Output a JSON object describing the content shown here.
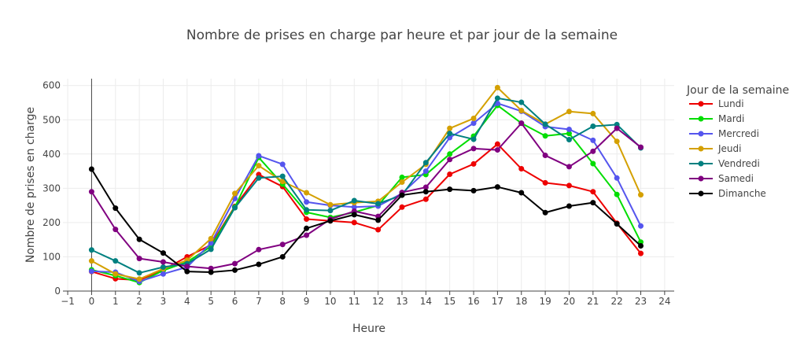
{
  "chart_data": {
    "type": "line",
    "title": "Nombre de prises en charge par heure et par jour de la semaine",
    "xlabel": "Heure",
    "ylabel": "Nombre de prises en charge",
    "xlim": [
      -1.2,
      24.4
    ],
    "ylim": [
      0,
      620
    ],
    "xticks": [
      -1,
      0,
      1,
      2,
      3,
      4,
      5,
      6,
      7,
      8,
      9,
      10,
      11,
      12,
      13,
      14,
      15,
      16,
      17,
      18,
      19,
      20,
      21,
      22,
      23,
      24
    ],
    "xtick_labels": [
      "−1",
      "0",
      "1",
      "2",
      "3",
      "4",
      "5",
      "6",
      "7",
      "8",
      "9",
      "10",
      "11",
      "12",
      "13",
      "14",
      "15",
      "16",
      "17",
      "18",
      "19",
      "20",
      "21",
      "22",
      "23",
      "24"
    ],
    "yticks": [
      0,
      100,
      200,
      300,
      400,
      500,
      600
    ],
    "grid": true,
    "legend_title": "Jour de la semaine",
    "legend_position": "right",
    "x": [
      0,
      1,
      2,
      3,
      4,
      5,
      6,
      7,
      8,
      9,
      10,
      11,
      12,
      13,
      14,
      15,
      16,
      17,
      18,
      19,
      20,
      21,
      22,
      23
    ],
    "series": [
      {
        "name": "Lundi",
        "color": "#ee0000",
        "values": [
          57,
          36,
          32,
          62,
          100,
          135,
          247,
          340,
          305,
          210,
          205,
          200,
          179,
          245,
          268,
          341,
          371,
          429,
          357,
          316,
          308,
          290,
          198,
          110
        ]
      },
      {
        "name": "Mardi",
        "color": "#00dd00",
        "values": [
          62,
          45,
          25,
          60,
          85,
          130,
          245,
          390,
          312,
          230,
          215,
          230,
          250,
          332,
          340,
          400,
          452,
          542,
          490,
          453,
          460,
          372,
          282,
          143
        ]
      },
      {
        "name": "Mercredi",
        "color": "#5555ee",
        "values": [
          58,
          55,
          28,
          50,
          70,
          140,
          270,
          395,
          370,
          260,
          250,
          245,
          248,
          285,
          350,
          448,
          490,
          548,
          525,
          480,
          472,
          440,
          330,
          190
        ]
      },
      {
        "name": "Jeudi",
        "color": "#d4a000",
        "values": [
          88,
          50,
          35,
          65,
          90,
          153,
          285,
          366,
          320,
          287,
          252,
          258,
          262,
          318,
          370,
          475,
          504,
          594,
          527,
          487,
          524,
          518,
          437,
          281
        ]
      },
      {
        "name": "Vendredi",
        "color": "#008080",
        "values": [
          120,
          88,
          53,
          70,
          80,
          122,
          243,
          330,
          335,
          237,
          235,
          264,
          255,
          280,
          375,
          460,
          443,
          563,
          551,
          487,
          442,
          481,
          486,
          418
        ]
      },
      {
        "name": "Samedi",
        "color": "#800080",
        "values": [
          290,
          180,
          95,
          85,
          72,
          66,
          80,
          121,
          136,
          163,
          210,
          233,
          218,
          288,
          303,
          384,
          416,
          412,
          490,
          396,
          363,
          408,
          475,
          420
        ]
      },
      {
        "name": "Dimanche",
        "color": "#000000",
        "values": [
          356,
          242,
          151,
          111,
          57,
          55,
          61,
          78,
          100,
          183,
          205,
          223,
          207,
          280,
          290,
          297,
          293,
          304,
          287,
          229,
          248,
          258,
          196,
          132
        ]
      }
    ]
  }
}
